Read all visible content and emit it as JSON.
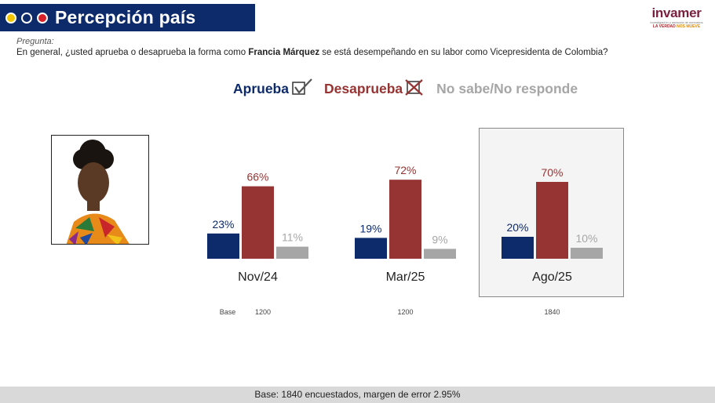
{
  "header": {
    "title": "Percepción país"
  },
  "logo": {
    "name": "invamer",
    "subtitle": "Investigación y asesoría de mercados",
    "tagline_main": "LA VERDAD",
    "tagline_accent": "NOS MUEVE"
  },
  "question": {
    "label": "Pregunta:",
    "text_before": "En general, ¿usted aprueba o desaprueba la forma como ",
    "text_bold": "Francia Márquez",
    "text_after": " se está desempeñando en su labor como Vicepresidenta de Colombia?"
  },
  "colors": {
    "aprueba": "#0d2a6b",
    "desaprueba": "#963433",
    "nosabe": "#a6a6a6"
  },
  "chart_data": {
    "type": "bar",
    "categories": [
      "Nov/24",
      "Mar/25",
      "Ago/25"
    ],
    "series": [
      {
        "name": "Aprueba",
        "values": [
          23,
          19,
          20
        ]
      },
      {
        "name": "Desaprueba",
        "values": [
          66,
          72,
          70
        ]
      },
      {
        "name": "No sabe/No responde",
        "values": [
          11,
          9,
          10
        ]
      }
    ],
    "value_suffix": "%",
    "base_label": "Base",
    "bases": [
      "1200",
      "1200",
      "1840"
    ],
    "highlighted_category": "Ago/25",
    "legend_position": "top"
  },
  "footer": {
    "text": "Base: 1840 encuestados, margen de error 2.95%"
  }
}
